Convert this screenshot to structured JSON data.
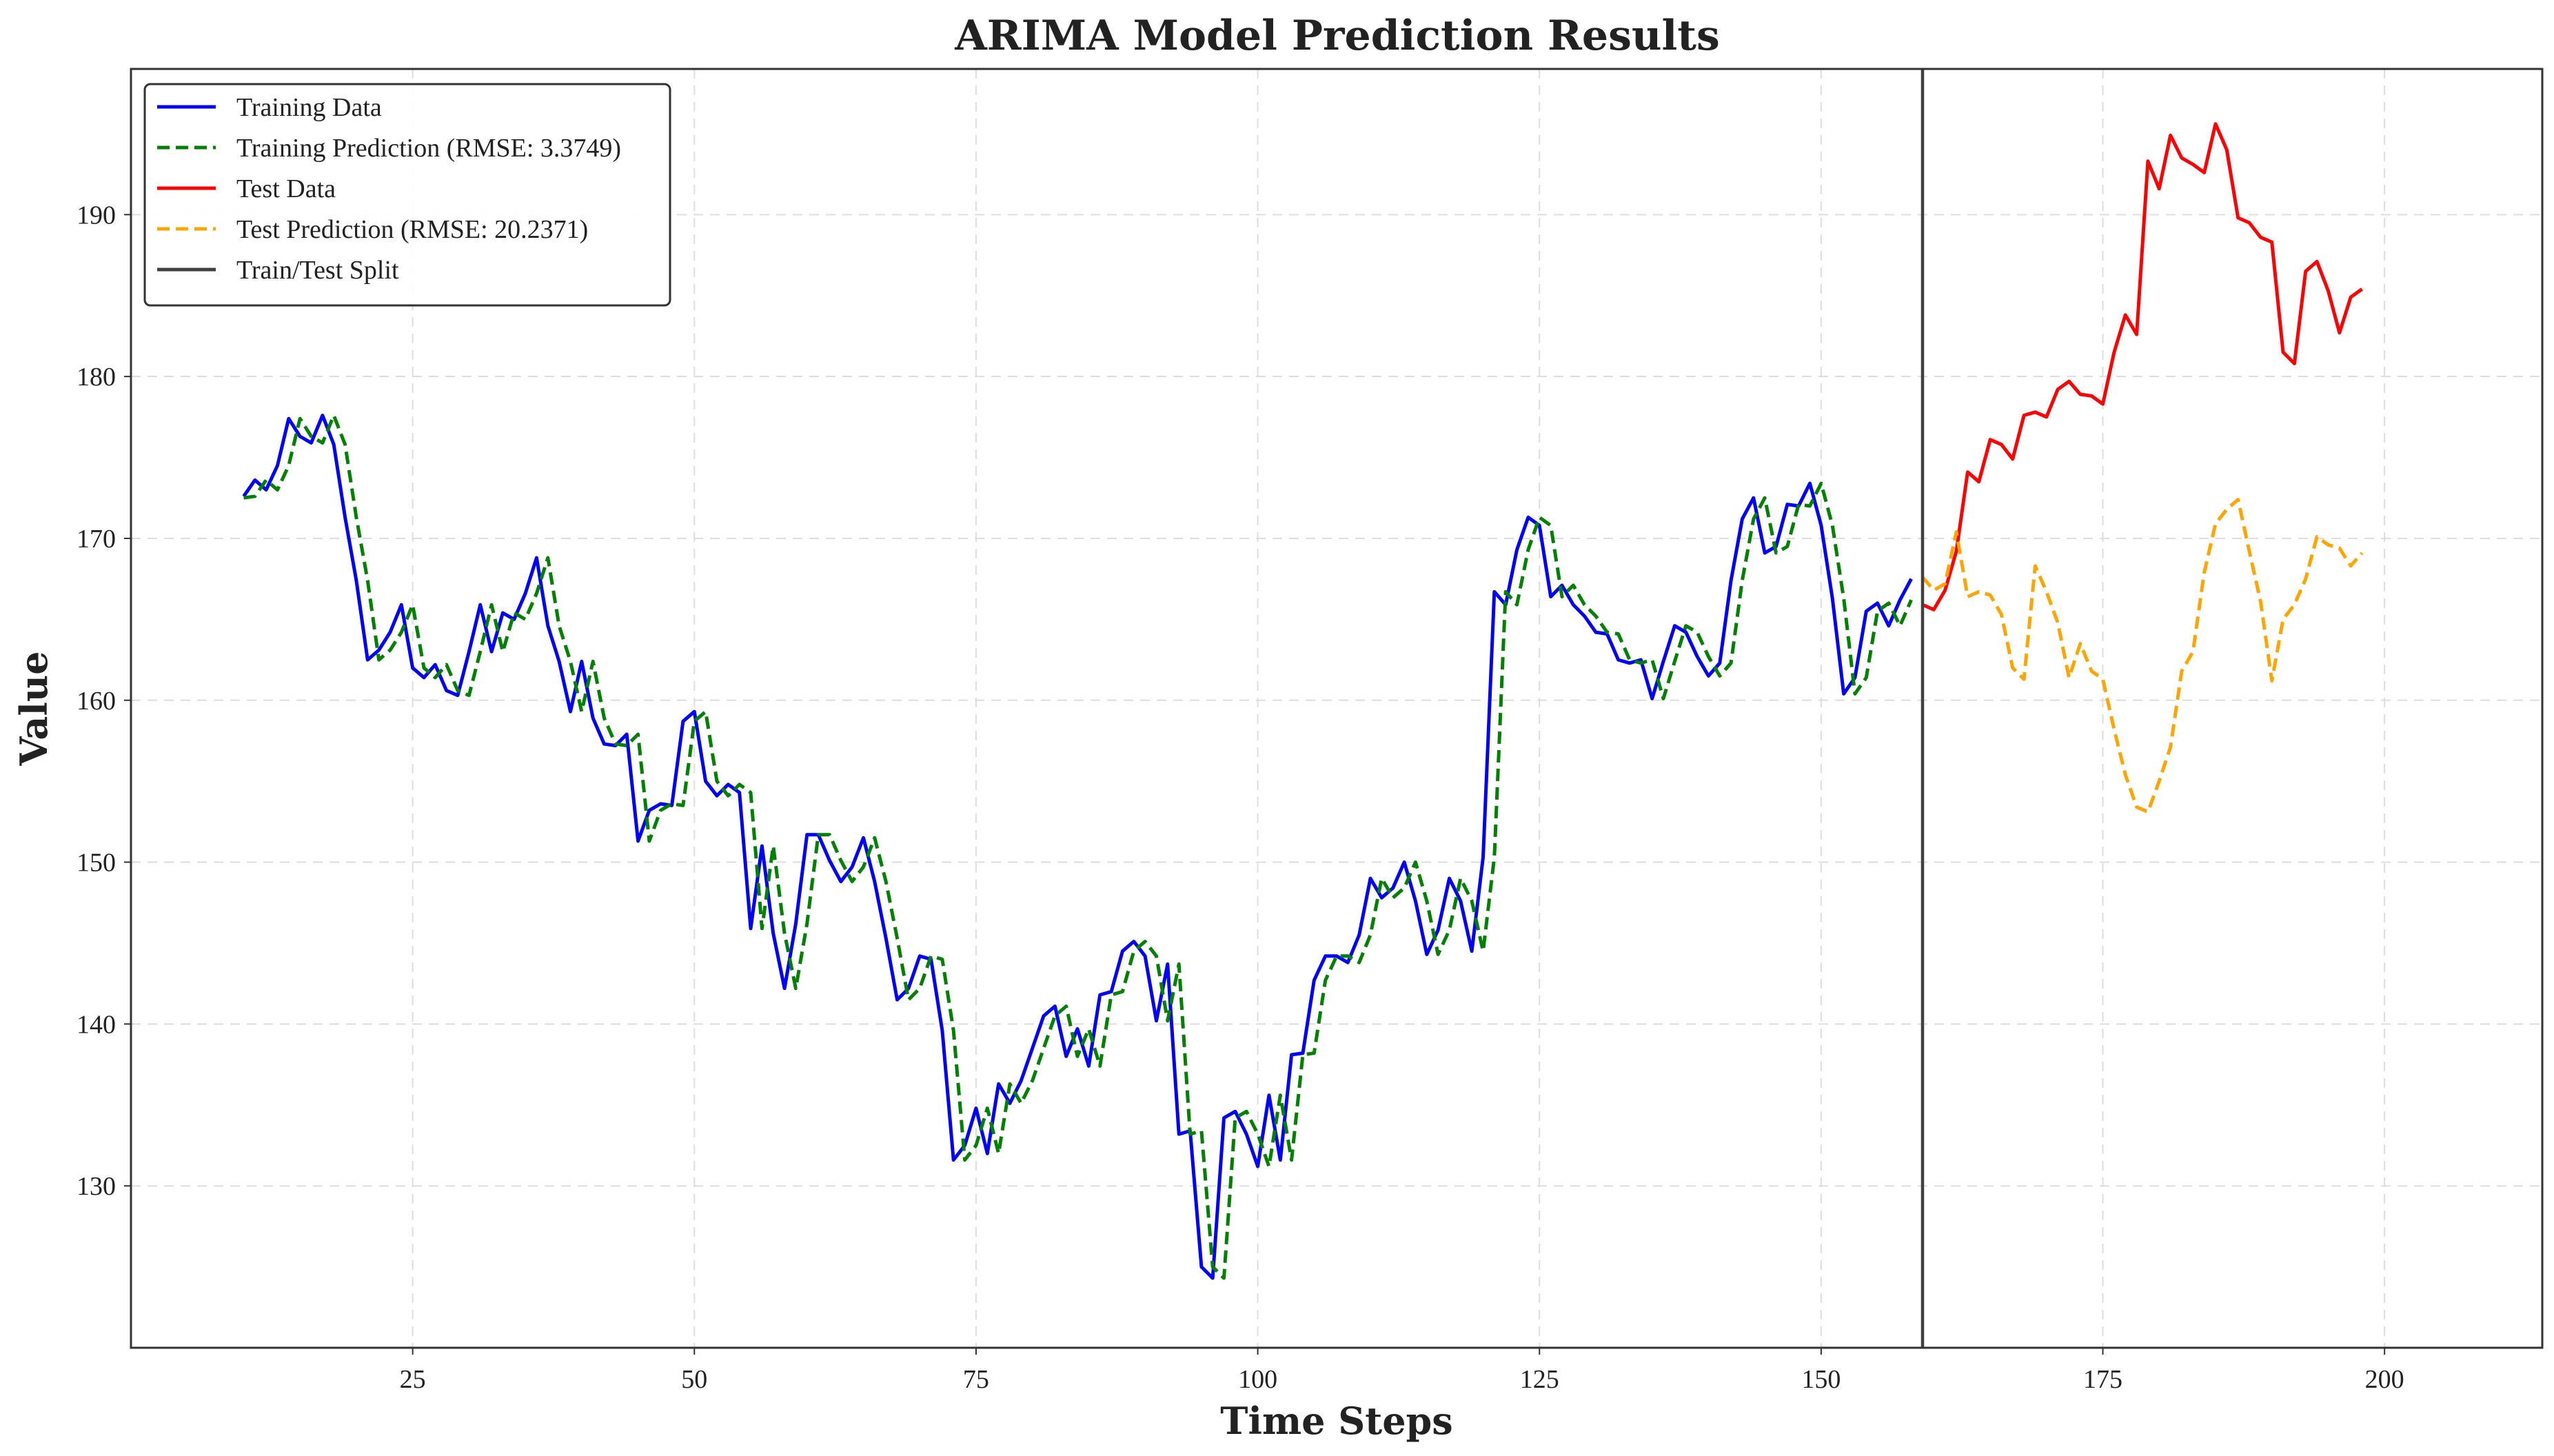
{
  "chart_data": {
    "type": "line",
    "title": "ARIMA Model Prediction Results",
    "xlabel": "Time Steps",
    "ylabel": "Value",
    "xlim": [
      0,
      214
    ],
    "ylim": [
      120,
      199
    ],
    "xticks": [
      25,
      50,
      75,
      100,
      125,
      150,
      175,
      200
    ],
    "yticks": [
      130,
      140,
      150,
      160,
      170,
      180,
      190
    ],
    "grid": true,
    "legend_position": "top-left",
    "split_x": 159,
    "series": [
      {
        "name": "Training Data",
        "color": "#0000ff",
        "style": "solid",
        "x_start": 10,
        "values": [
          172.6,
          173.6,
          173.0,
          174.5,
          177.4,
          176.3,
          175.9,
          177.6,
          175.8,
          171.3,
          167.4,
          162.5,
          163.1,
          164.2,
          165.9,
          162.0,
          161.4,
          162.2,
          160.6,
          160.3,
          163.0,
          165.9,
          163.0,
          165.4,
          165.0,
          166.6,
          168.8,
          164.6,
          162.4,
          159.3,
          162.4,
          158.9,
          157.3,
          157.2,
          157.9,
          151.3,
          153.2,
          153.6,
          153.5,
          158.7,
          159.3,
          155.0,
          154.1,
          154.8,
          154.3,
          145.9,
          151.0,
          145.6,
          142.2,
          146.2,
          151.7,
          151.7,
          150.1,
          148.8,
          149.7,
          151.5,
          148.8,
          145.3,
          141.5,
          142.2,
          144.2,
          144.0,
          139.6,
          131.6,
          132.5,
          134.8,
          132.0,
          136.3,
          135.1,
          136.5,
          138.5,
          140.5,
          141.1,
          138.0,
          139.7,
          137.4,
          141.8,
          142.0,
          144.5,
          145.1,
          144.2,
          140.2,
          143.7,
          133.2,
          133.4,
          125.0,
          124.3,
          134.2,
          134.6,
          133.2,
          131.2,
          135.6,
          131.6,
          138.1,
          138.2,
          142.7,
          144.2,
          144.2,
          143.8,
          145.5,
          149.0,
          147.8,
          148.4,
          150.0,
          147.6,
          144.3,
          145.8,
          149.0,
          147.6,
          144.5,
          150.3,
          166.7,
          165.9,
          169.3,
          171.3,
          170.8,
          166.4,
          167.1,
          165.9,
          165.2,
          164.2,
          164.1,
          162.5,
          162.3,
          162.5,
          160.1,
          162.4,
          164.6,
          164.2,
          162.7,
          161.5,
          162.3,
          167.4,
          171.2,
          172.5,
          169.1,
          169.5,
          172.1,
          172.0,
          173.4,
          170.8,
          166.3,
          160.4,
          161.4,
          165.5,
          166.0,
          164.6,
          166.2,
          167.5
        ]
      },
      {
        "name": "Training Prediction (RMSE: 3.3749)",
        "color": "#008000",
        "style": "dashed",
        "x_start": 10,
        "values": [
          172.5,
          172.6,
          173.6,
          173.0,
          174.5,
          177.4,
          176.3,
          175.9,
          177.6,
          175.8,
          171.3,
          167.4,
          162.5,
          163.1,
          164.2,
          165.9,
          162.0,
          161.4,
          162.2,
          160.6,
          160.3,
          163.0,
          165.9,
          163.0,
          165.4,
          165.0,
          166.6,
          168.8,
          164.6,
          162.4,
          159.3,
          162.4,
          158.9,
          157.3,
          157.2,
          157.9,
          151.3,
          153.2,
          153.6,
          153.5,
          158.7,
          159.3,
          155.0,
          154.1,
          154.8,
          154.3,
          145.9,
          151.0,
          145.6,
          142.2,
          146.2,
          151.7,
          151.7,
          150.1,
          148.8,
          149.7,
          151.5,
          148.8,
          145.3,
          141.5,
          142.2,
          144.2,
          144.0,
          139.6,
          131.6,
          132.5,
          134.8,
          132.0,
          136.3,
          135.1,
          136.5,
          138.5,
          140.5,
          141.1,
          138.0,
          139.7,
          137.4,
          141.8,
          142.0,
          144.5,
          145.1,
          144.2,
          140.2,
          143.7,
          133.2,
          133.4,
          125.0,
          124.3,
          134.2,
          134.6,
          133.2,
          131.2,
          135.6,
          131.6,
          138.1,
          138.2,
          142.7,
          144.2,
          144.2,
          143.8,
          145.5,
          149.0,
          147.8,
          148.4,
          150.0,
          147.6,
          144.3,
          145.8,
          149.0,
          147.6,
          144.5,
          150.3,
          166.7,
          165.9,
          169.3,
          171.3,
          170.8,
          166.4,
          167.1,
          165.9,
          165.2,
          164.2,
          164.1,
          162.5,
          162.3,
          162.5,
          160.1,
          162.4,
          164.6,
          164.2,
          162.7,
          161.5,
          162.3,
          167.4,
          171.2,
          172.5,
          169.1,
          169.5,
          172.1,
          172.0,
          173.4,
          170.8,
          166.3,
          160.4,
          161.4,
          165.5,
          166.0,
          164.6,
          166.2
        ]
      },
      {
        "name": "Test Data",
        "color": "#ff0000",
        "style": "solid",
        "x_start": 159,
        "values": [
          165.9,
          165.6,
          166.8,
          169.2,
          174.1,
          173.5,
          176.1,
          175.8,
          174.9,
          177.6,
          177.8,
          177.5,
          179.2,
          179.7,
          178.9,
          178.8,
          178.3,
          181.5,
          183.8,
          182.6,
          193.3,
          191.6,
          194.9,
          193.5,
          193.1,
          192.6,
          195.6,
          194.0,
          189.8,
          189.5,
          188.6,
          188.3,
          181.5,
          180.8,
          186.5,
          187.1,
          185.3,
          182.7,
          184.9,
          185.4
        ]
      },
      {
        "name": "Test Prediction (RMSE: 20.2371)",
        "color": "#ffa500",
        "style": "dashed",
        "x_start": 159,
        "values": [
          167.6,
          166.8,
          167.2,
          170.4,
          166.4,
          166.7,
          166.5,
          165.3,
          162.0,
          161.3,
          168.3,
          166.7,
          164.8,
          161.4,
          163.5,
          161.8,
          161.3,
          158.2,
          155.4,
          153.4,
          153.1,
          155.0,
          157.1,
          161.8,
          163.0,
          167.9,
          170.9,
          171.8,
          172.4,
          169.2,
          166.1,
          161.2,
          165.0,
          165.9,
          167.5,
          170.1,
          169.6,
          169.4,
          168.3,
          169.1
        ]
      },
      {
        "name": "Train/Test Split",
        "color": "#404040",
        "style": "solid",
        "vertical_at": 159
      }
    ]
  }
}
